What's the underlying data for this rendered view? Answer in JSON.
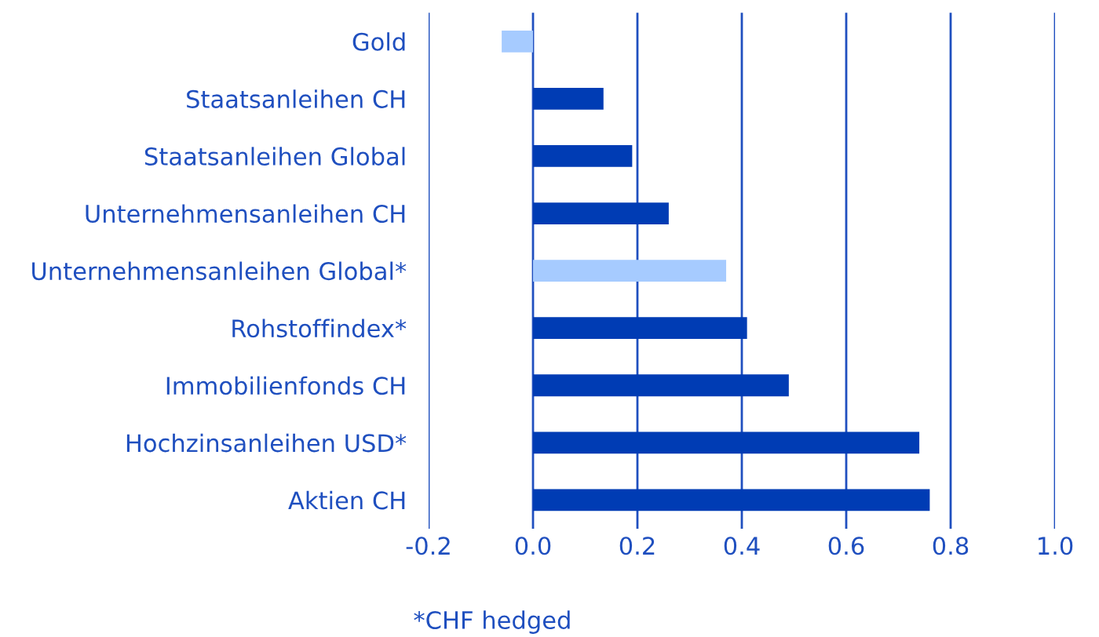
{
  "chart_data": {
    "type": "bar",
    "orientation": "horizontal",
    "categories": [
      "Gold",
      "Staatsanleihen CH",
      "Staatsanleihen Global",
      "Unternehmensanleihen CH",
      "Unternehmensanleihen Global*",
      "Rohstoffindex*",
      "Immobilienfonds CH",
      "Hochzinsanleihen USD*",
      "Aktien CH"
    ],
    "values": [
      -0.06,
      0.135,
      0.19,
      0.26,
      0.37,
      0.41,
      0.49,
      0.74,
      0.76
    ],
    "colors": [
      "#a6cbff",
      "#003cb4",
      "#003cb4",
      "#003cb4",
      "#a6cbff",
      "#003cb4",
      "#003cb4",
      "#003cb4",
      "#003cb4"
    ],
    "xlim": [
      -0.2,
      1.0
    ],
    "xticks": [
      {
        "value": -0.2,
        "label": "-0.2"
      },
      {
        "value": 0,
        "label": "0.0"
      },
      {
        "value": 0.2,
        "label": "0.2"
      },
      {
        "value": 0.4,
        "label": "0.4"
      },
      {
        "value": 0.6,
        "label": "0.6"
      },
      {
        "value": 0.8,
        "label": "0.8"
      },
      {
        "value": 1.0,
        "label": "1.0"
      }
    ],
    "grid": "x",
    "annotations": [
      "*CHF hedged"
    ]
  }
}
